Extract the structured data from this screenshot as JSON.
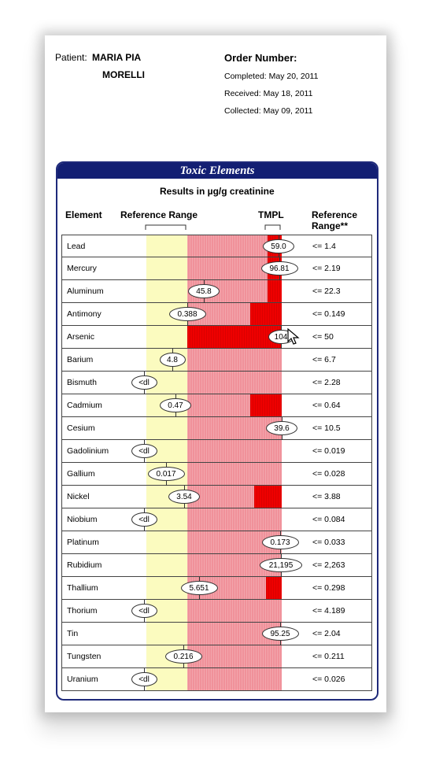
{
  "header": {
    "patient_label": "Patient:",
    "patient_first": "MARIA PIA",
    "patient_last": "MORELLI",
    "order_label": "Order Number:",
    "completed": "Completed: May 20, 2011",
    "received": "Received: May 18, 2011",
    "collected": "Collected: May 09, 2011"
  },
  "panel": {
    "title": "Toxic Elements",
    "subtitle": "Results in µg/g creatinine",
    "col_element": "Element",
    "col_range": "Reference Range",
    "col_tmpl": "TMPL",
    "col_ref": "Reference",
    "col_ref2": "Range**"
  },
  "colors": {
    "panel_blue": "#131f73",
    "reference_yellow": "#fbfbbf",
    "elevated_pink": "#f0919a",
    "high_red": "#ee0000"
  },
  "chart_data": {
    "type": "table",
    "rows": [
      {
        "element": "Lead",
        "result": "59.0",
        "reference": "<= 1.4",
        "level": "above_tmpl",
        "red_fraction": 0.15
      },
      {
        "element": "Mercury",
        "result": "96.81",
        "reference": "<= 2.19",
        "level": "above_tmpl",
        "red_fraction": 0.15
      },
      {
        "element": "Aluminum",
        "result": "45.8",
        "reference": "<= 22.3",
        "level": "elevated",
        "red_fraction": 0.15
      },
      {
        "element": "Antimony",
        "result": "0.388",
        "reference": "<= 0.149",
        "level": "elevated",
        "red_fraction": 0.33
      },
      {
        "element": "Arsenic",
        "result": "104",
        "reference": "<= 50",
        "level": "above_tmpl",
        "red_fraction": 1.0
      },
      {
        "element": "Barium",
        "result": "4.8",
        "reference": "<= 6.7",
        "level": "normal",
        "red_fraction": 0
      },
      {
        "element": "Bismuth",
        "result": "<dl",
        "reference": "<= 2.28",
        "level": "below_dl",
        "red_fraction": 0
      },
      {
        "element": "Cadmium",
        "result": "0.47",
        "reference": "<= 0.64",
        "level": "normal",
        "red_fraction": 0.33
      },
      {
        "element": "Cesium",
        "result": "39.6",
        "reference": "<= 10.5",
        "level": "elevated",
        "red_fraction": 0
      },
      {
        "element": "Gadolinium",
        "result": "<dl",
        "reference": "<= 0.019",
        "level": "below_dl",
        "red_fraction": 0
      },
      {
        "element": "Gallium",
        "result": "0.017",
        "reference": "<= 0.028",
        "level": "normal",
        "red_fraction": 0
      },
      {
        "element": "Nickel",
        "result": "3.54",
        "reference": "<= 3.88",
        "level": "normal",
        "red_fraction": 0.29
      },
      {
        "element": "Niobium",
        "result": "<dl",
        "reference": "<= 0.084",
        "level": "below_dl",
        "red_fraction": 0
      },
      {
        "element": "Platinum",
        "result": "0.173",
        "reference": "<= 0.033",
        "level": "above_tmpl",
        "red_fraction": 0
      },
      {
        "element": "Rubidium",
        "result": "21,195",
        "reference": "<= 2,263",
        "level": "above_tmpl",
        "red_fraction": 0
      },
      {
        "element": "Thallium",
        "result": "5.651",
        "reference": "<= 0.298",
        "level": "elevated",
        "red_fraction": 0.17
      },
      {
        "element": "Thorium",
        "result": "<dl",
        "reference": "<= 4.189",
        "level": "below_dl",
        "red_fraction": 0
      },
      {
        "element": "Tin",
        "result": "95.25",
        "reference": "<= 2.04",
        "level": "above_tmpl",
        "red_fraction": 0
      },
      {
        "element": "Tungsten",
        "result": "0.216",
        "reference": "<= 0.211",
        "level": "elevated",
        "red_fraction": 0
      },
      {
        "element": "Uranium",
        "result": "<dl",
        "reference": "<= 0.026",
        "level": "below_dl",
        "red_fraction": 0
      }
    ]
  }
}
